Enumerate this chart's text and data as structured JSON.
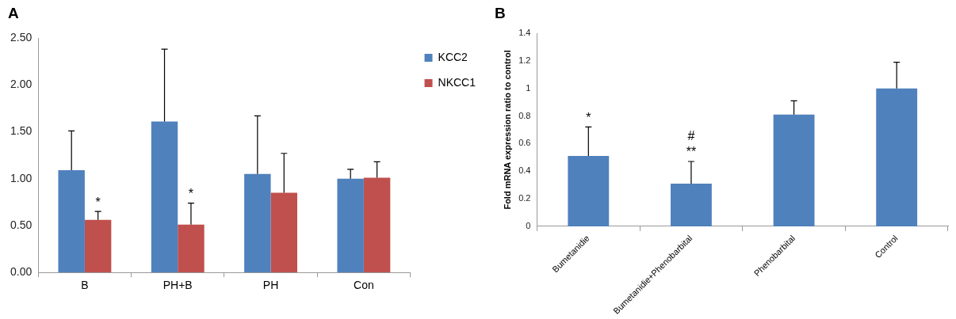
{
  "chart_data": [
    {
      "type": "bar",
      "title": "A",
      "categories": [
        "B",
        "PH+B",
        "PH",
        "Con"
      ],
      "series": [
        {
          "name": "KCC2",
          "color": "#4f81bd",
          "values": [
            1.09,
            1.61,
            1.05,
            1.0
          ],
          "errors": [
            [
              1.09,
              1.51
            ],
            [
              1.61,
              2.38
            ],
            [
              1.05,
              1.67
            ],
            [
              1.0,
              1.1
            ]
          ]
        },
        {
          "name": "NKCC1",
          "color": "#c0504d",
          "values": [
            0.56,
            0.51,
            0.85,
            1.01
          ],
          "errors": [
            [
              0.56,
              0.65
            ],
            [
              0.51,
              0.74
            ],
            [
              0.85,
              1.27
            ],
            [
              1.01,
              1.18
            ]
          ]
        }
      ],
      "ylim": [
        0,
        2.5
      ],
      "yticks": [
        {
          "value": 0,
          "label": "0.00"
        },
        {
          "value": 0.5,
          "label": "0.50"
        },
        {
          "value": 1,
          "label": "1.00"
        },
        {
          "value": 1.5,
          "label": "1.50"
        },
        {
          "value": 2,
          "label": "2.00"
        },
        {
          "value": 2.5,
          "label": "2.50"
        }
      ],
      "legend": "top right",
      "annotations": [
        {
          "text": "*",
          "x": "B",
          "y": 0.65
        },
        {
          "text": "*",
          "x": "PH+B",
          "y": 0.74
        }
      ]
    },
    {
      "type": "bar",
      "title": "B",
      "ylabel": "Fold mRNA expression ratio to control",
      "categories": [
        "Bumetanidie",
        "Bumetanidie+Phenobarbital",
        "Phenobarbital",
        "Control"
      ],
      "series": [
        {
          "color": "#4f81bd",
          "values": [
            0.51,
            0.31,
            0.81,
            1.0
          ],
          "errors": [
            [
              0.51,
              0.72
            ],
            [
              0.31,
              0.47
            ],
            [
              0.81,
              0.91
            ],
            [
              1.0,
              1.19
            ]
          ]
        }
      ],
      "ylim": [
        0,
        1.4
      ],
      "yticks": [
        0,
        0.2,
        0.4,
        0.6,
        0.8,
        1,
        1.2,
        1.4
      ],
      "annotations": [
        {
          "text": "*",
          "x": "Bumetanidie",
          "y": 0.72
        },
        {
          "text": "**",
          "x": "Bumetanidie+Phenobarbital",
          "y": 0.47
        },
        {
          "text": "#",
          "x": "Bumetanidie+Phenobarbital",
          "y": 0.47
        }
      ]
    }
  ]
}
